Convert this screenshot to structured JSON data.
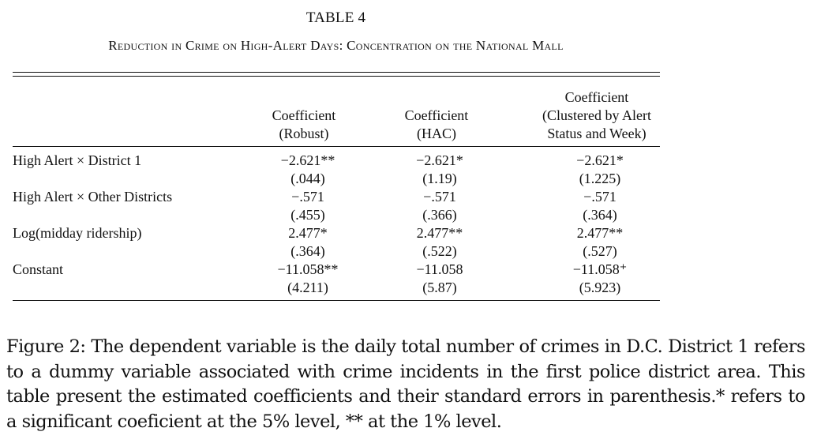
{
  "table": {
    "title": "TABLE 4",
    "subtitle": "Reduction in Crime on High-Alert Days: Concentration on the National Mall",
    "columns": [
      [
        "Coefficient",
        "(Robust)"
      ],
      [
        "Coefficient",
        "(HAC)"
      ],
      [
        "Coefficient",
        "(Clustered by Alert",
        "Status and Week)"
      ]
    ],
    "rows": [
      {
        "label": "High Alert × District 1",
        "coef": [
          "−2.621**",
          "−2.621*",
          "−2.621*"
        ],
        "se": [
          "(.044)",
          "(1.19)",
          "(1.225)"
        ]
      },
      {
        "label": "High Alert × Other Districts",
        "coef": [
          "−.571",
          "−.571",
          "−.571"
        ],
        "se": [
          "(.455)",
          "(.366)",
          "(.364)"
        ]
      },
      {
        "label": "Log(midday ridership)",
        "coef": [
          "2.477*",
          "2.477**",
          "2.477**"
        ],
        "se": [
          "(.364)",
          "(.522)",
          "(.527)"
        ]
      },
      {
        "label": "Constant",
        "coef": [
          "−11.058**",
          "−11.058",
          "−11.058⁺"
        ],
        "se": [
          "(4.211)",
          "(5.87)",
          "(5.923)"
        ]
      }
    ]
  },
  "caption": "Figure 2: The dependent variable is the daily total number of crimes in D.C. District 1 refers to a dummy variable associated with crime incidents in the first police district area. This table present the estimated coefficients and their standard errors in parenthesis.* refers to a significant coeficient at the 5% level, ** at the 1% level."
}
